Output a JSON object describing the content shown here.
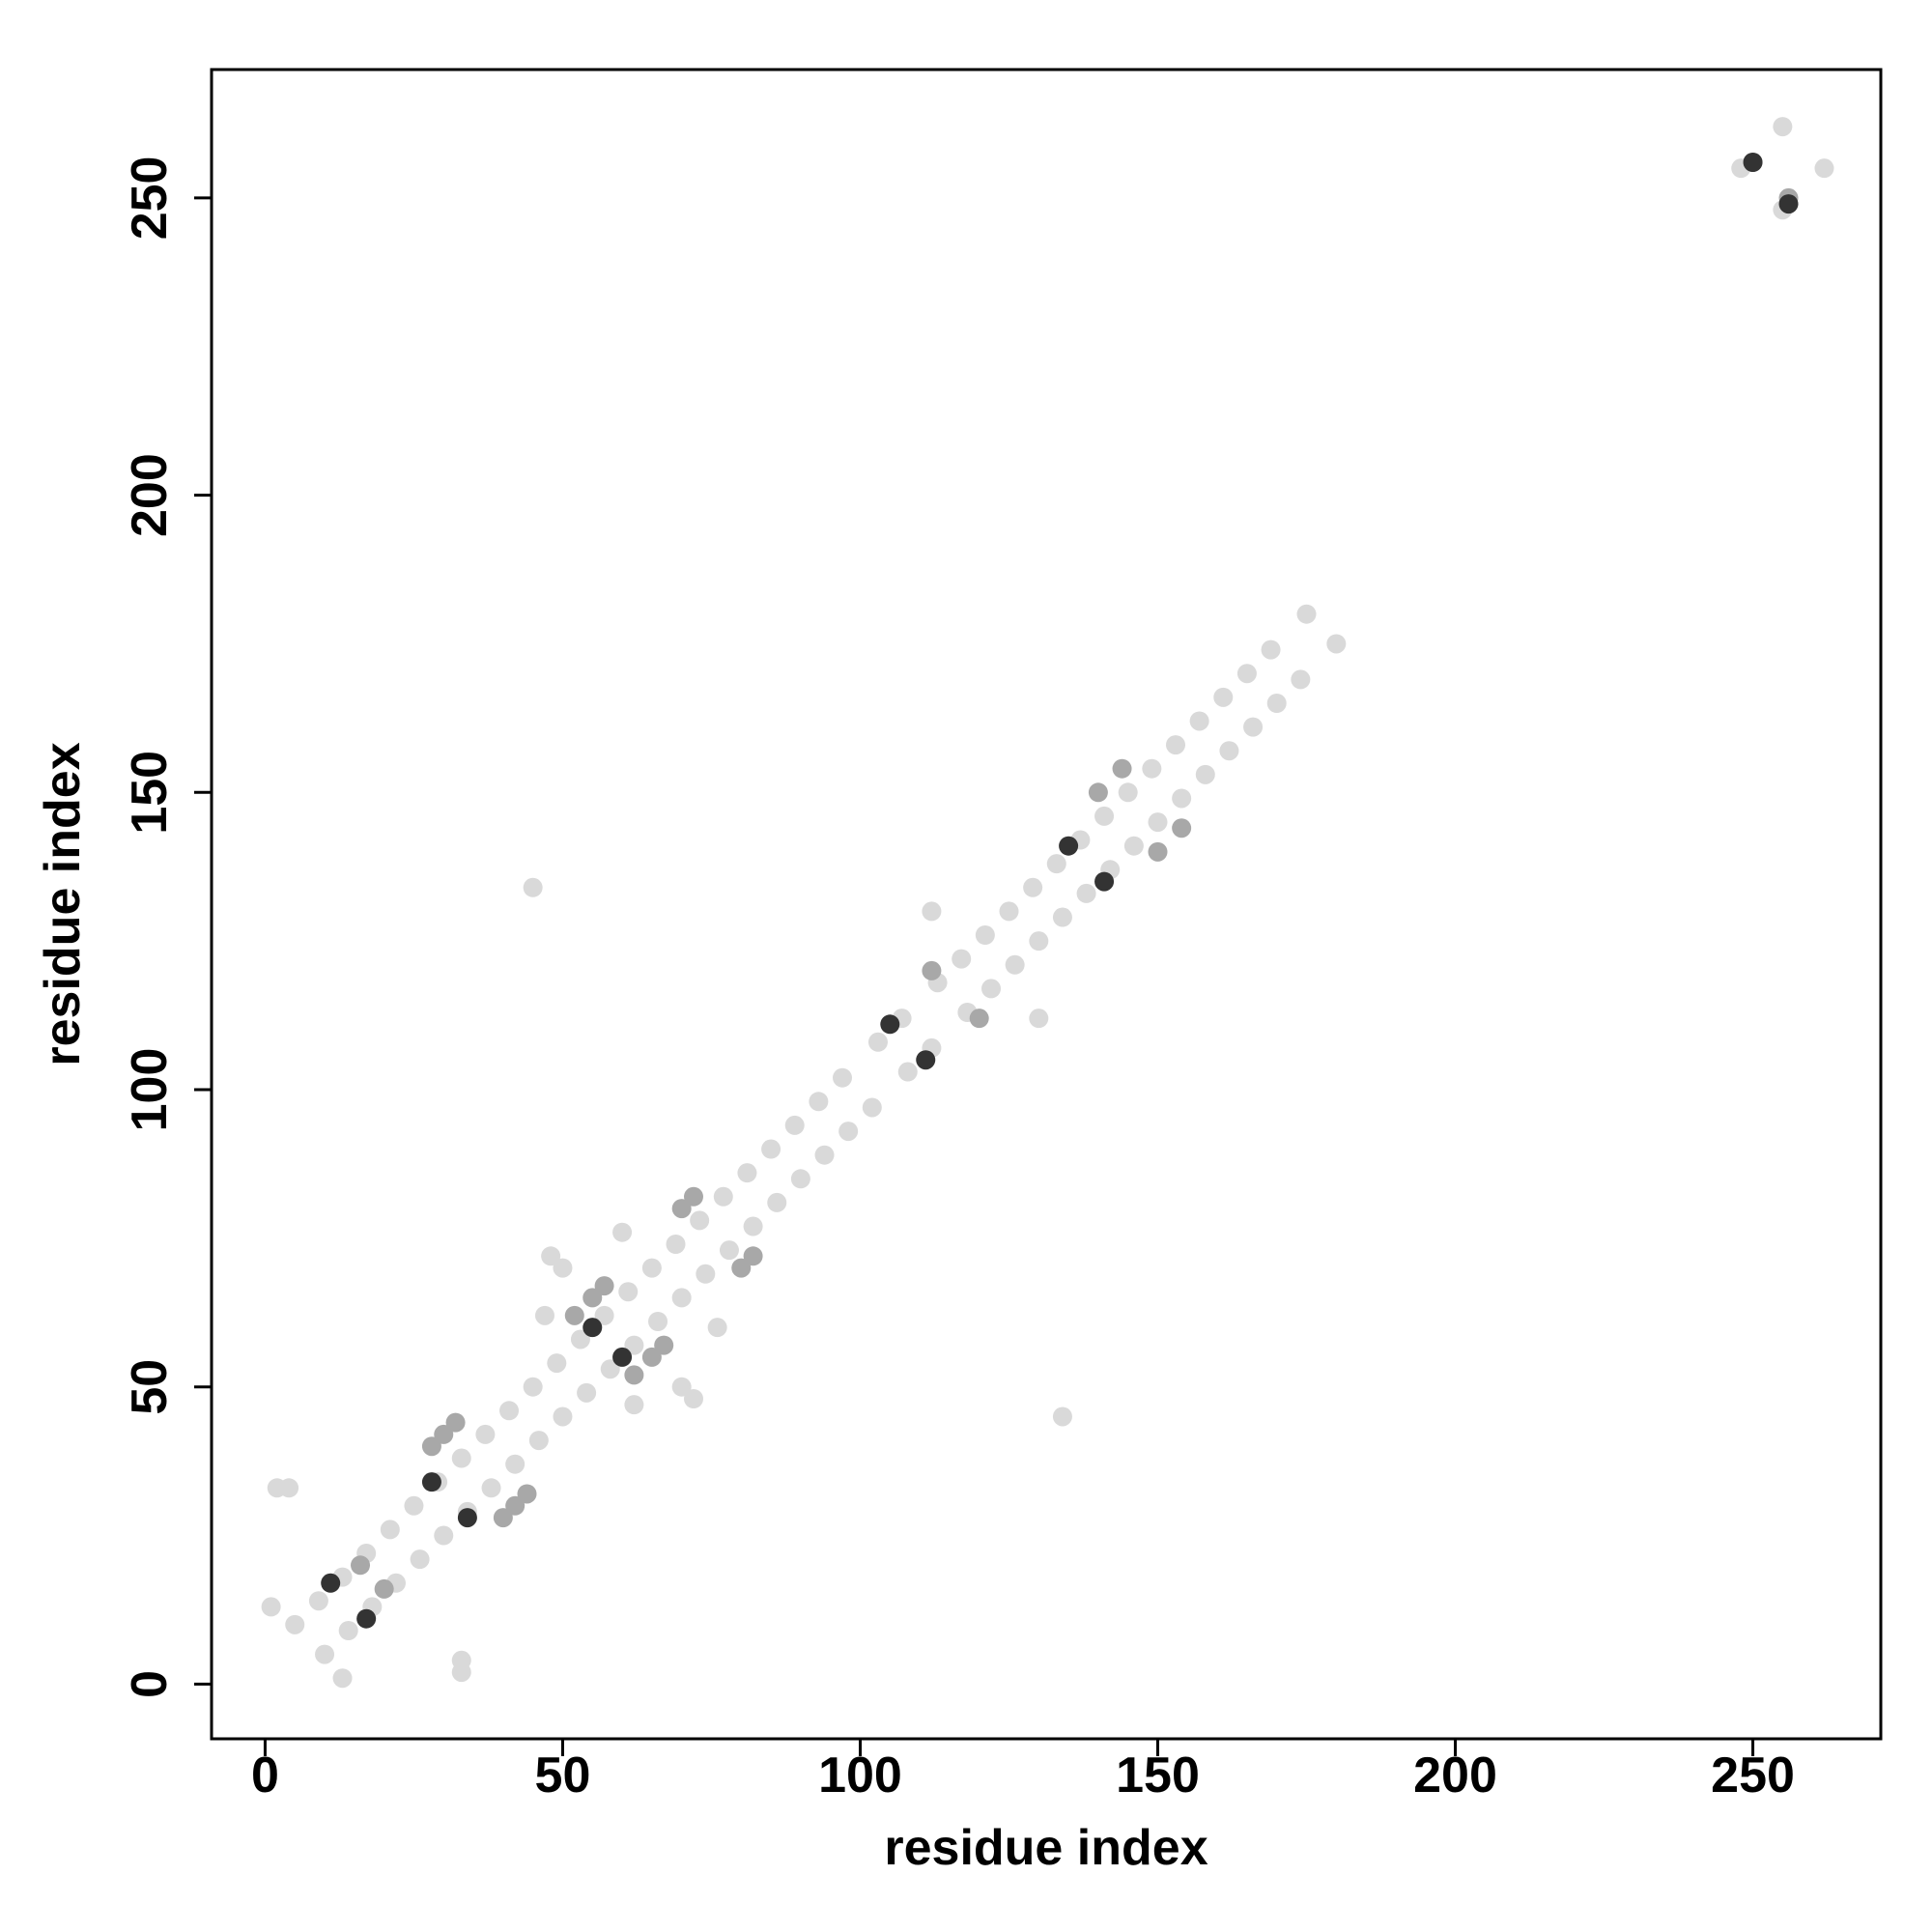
{
  "chart_data": {
    "type": "scatter",
    "xlabel": "residue index",
    "ylabel": "residue index",
    "xlim": [
      -9,
      271.5
    ],
    "ylim": [
      -9.2,
      271.6
    ],
    "xticks": [
      0,
      50,
      100,
      150,
      200,
      250
    ],
    "yticks": [
      0,
      50,
      100,
      150,
      200,
      250
    ],
    "grid": false,
    "series": [
      {
        "color": "#d9d9d9",
        "x": [
          5,
          9,
          13,
          17,
          21,
          25,
          29,
          33,
          37,
          41,
          45,
          49,
          53,
          57,
          61,
          65,
          69,
          73,
          77,
          81,
          85,
          89,
          93,
          97,
          103,
          107,
          113,
          117,
          121,
          125,
          129,
          133,
          137,
          141,
          145,
          149,
          153,
          157,
          161,
          165,
          169,
          175,
          10,
          14,
          18,
          22,
          26,
          30,
          34,
          38,
          42,
          46,
          50,
          54,
          58,
          62,
          66,
          70,
          74,
          78,
          82,
          86,
          90,
          94,
          98,
          102,
          108,
          112,
          118,
          122,
          126,
          130,
          134,
          138,
          142,
          146,
          150,
          154,
          158,
          162,
          166,
          170,
          174,
          180,
          2,
          4,
          33,
          33,
          45,
          134,
          1,
          13,
          48,
          50,
          72,
          70,
          248,
          255,
          262,
          255,
          112,
          130,
          47,
          62,
          76,
          60
        ],
        "y": [
          10,
          14,
          18,
          22,
          26,
          30,
          34,
          38,
          42,
          46,
          50,
          54,
          58,
          62,
          66,
          70,
          74,
          78,
          82,
          86,
          90,
          94,
          98,
          102,
          108,
          112,
          118,
          122,
          126,
          130,
          134,
          138,
          142,
          146,
          150,
          154,
          158,
          162,
          166,
          170,
          174,
          180,
          5,
          9,
          13,
          17,
          21,
          25,
          29,
          33,
          37,
          41,
          45,
          49,
          53,
          57,
          61,
          65,
          69,
          73,
          77,
          81,
          85,
          89,
          93,
          97,
          103,
          107,
          113,
          117,
          121,
          125,
          129,
          133,
          137,
          141,
          145,
          149,
          153,
          157,
          161,
          165,
          169,
          175,
          33,
          33,
          2,
          4,
          134,
          45,
          13,
          1,
          72,
          70,
          48,
          50,
          255,
          248,
          255,
          262,
          130,
          112,
          62,
          47,
          60,
          76
        ]
      },
      {
        "color": "#a8a8a8",
        "x": [
          16,
          20,
          28,
          30,
          32,
          40,
          42,
          44,
          52,
          55,
          57,
          65,
          67,
          62,
          70,
          72,
          80,
          82,
          112,
          120,
          140,
          144,
          150,
          154,
          250,
          256
        ],
        "y": [
          20,
          16,
          40,
          42,
          44,
          28,
          30,
          32,
          62,
          65,
          67,
          55,
          57,
          52,
          80,
          82,
          70,
          72,
          120,
          112,
          150,
          154,
          140,
          144,
          256,
          250
        ]
      },
      {
        "color": "#333333",
        "x": [
          11,
          17,
          28,
          34,
          55,
          60,
          105,
          111,
          135,
          141,
          250,
          256
        ],
        "y": [
          17,
          11,
          34,
          28,
          60,
          55,
          111,
          105,
          141,
          135,
          256,
          249
        ]
      }
    ]
  }
}
